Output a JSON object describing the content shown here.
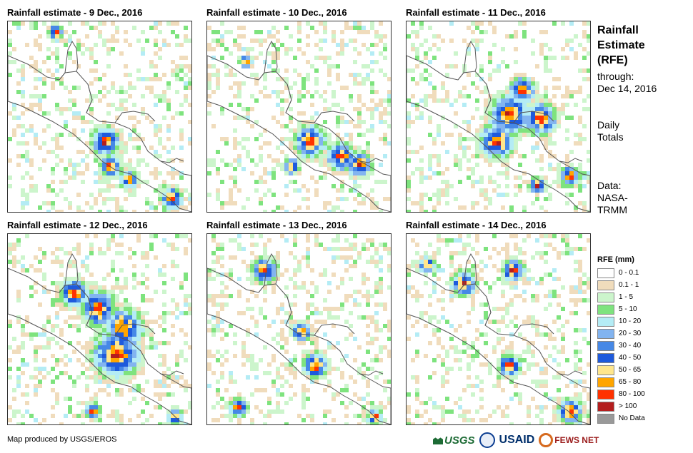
{
  "panels": [
    {
      "title": "Rainfall estimate - 9 Dec., 2016",
      "blobs": [
        [
          0.52,
          0.62,
          0.9,
          "60,70"
        ],
        [
          0.55,
          0.75,
          0.7,
          "40,50"
        ],
        [
          0.65,
          0.82,
          0.6,
          "20,30"
        ],
        [
          0.88,
          0.92,
          0.7,
          "40,50"
        ],
        [
          0.25,
          0.05,
          0.5,
          "20,30"
        ]
      ]
    },
    {
      "title": "Rainfall estimate - 10 Dec., 2016",
      "blobs": [
        [
          0.55,
          0.62,
          1.0,
          "90"
        ],
        [
          0.72,
          0.7,
          0.9,
          "60"
        ],
        [
          0.82,
          0.74,
          0.8,
          "40,50"
        ],
        [
          0.45,
          0.75,
          0.5,
          "20,30"
        ],
        [
          0.2,
          0.2,
          0.4,
          "10,20"
        ]
      ]
    },
    {
      "title": "Rainfall estimate - 11 Dec., 2016",
      "blobs": [
        [
          0.55,
          0.48,
          1.3,
          "100"
        ],
        [
          0.48,
          0.62,
          1.1,
          "100"
        ],
        [
          0.72,
          0.5,
          1.0,
          "80"
        ],
        [
          0.62,
          0.35,
          0.8,
          "50,60"
        ],
        [
          0.88,
          0.8,
          0.6,
          "20,30"
        ],
        [
          0.7,
          0.85,
          0.5,
          "20,30"
        ]
      ]
    },
    {
      "title": "Rainfall estimate - 12 Dec., 2016",
      "blobs": [
        [
          0.58,
          0.62,
          1.5,
          "100"
        ],
        [
          0.62,
          0.48,
          1.2,
          "80"
        ],
        [
          0.48,
          0.38,
          1.1,
          "50,60"
        ],
        [
          0.35,
          0.3,
          0.9,
          "30,40"
        ],
        [
          0.45,
          0.92,
          0.5,
          "40,50"
        ],
        [
          0.9,
          0.95,
          0.5,
          "20,30"
        ]
      ]
    },
    {
      "title": "Rainfall estimate - 13 Dec., 2016",
      "blobs": [
        [
          0.3,
          0.18,
          0.8,
          "60,70"
        ],
        [
          0.58,
          0.68,
          0.8,
          "60"
        ],
        [
          0.16,
          0.9,
          0.6,
          "30,40"
        ],
        [
          0.5,
          0.5,
          0.6,
          "20,30"
        ],
        [
          0.9,
          0.95,
          0.5,
          "20,30"
        ]
      ]
    },
    {
      "title": "Rainfall estimate - 14 Dec., 2016",
      "blobs": [
        [
          0.3,
          0.25,
          0.8,
          "40,50"
        ],
        [
          0.57,
          0.18,
          0.7,
          "40,50"
        ],
        [
          0.88,
          0.92,
          0.8,
          "60,70"
        ],
        [
          0.55,
          0.68,
          0.7,
          "50,60"
        ],
        [
          0.1,
          0.15,
          0.5,
          "20,30"
        ]
      ]
    }
  ],
  "side_title": "Rainfall Estimate (RFE)",
  "through_label": "through:",
  "through_date": "Dec 14, 2016",
  "daily_totals": "Daily Totals",
  "data_source": "Data: NASA-TRMM",
  "legend": {
    "title": "RFE (mm)",
    "items": [
      {
        "label": "0 - 0.1",
        "color": "#ffffff"
      },
      {
        "label": "0.1 - 1",
        "color": "#f0dcbc"
      },
      {
        "label": "1 - 5",
        "color": "#ccf5cc"
      },
      {
        "label": "5 - 10",
        "color": "#7ee37e"
      },
      {
        "label": "10 - 20",
        "color": "#b4ecf5"
      },
      {
        "label": "20 - 30",
        "color": "#82b4f0"
      },
      {
        "label": "30 - 40",
        "color": "#4688e6"
      },
      {
        "label": "40 - 50",
        "color": "#1e5adc"
      },
      {
        "label": "50 - 65",
        "color": "#ffe68c"
      },
      {
        "label": "65 - 80",
        "color": "#ffa500"
      },
      {
        "label": "80 - 100",
        "color": "#ff3200"
      },
      {
        "label": "> 100",
        "color": "#b41e1e"
      },
      {
        "label": "No Data",
        "color": "#999999"
      }
    ]
  },
  "credit": "Map produced by USGS/EROS",
  "logos": {
    "usgs": "USGS",
    "usaid": "USAID",
    "fews": "FEWS NET"
  }
}
